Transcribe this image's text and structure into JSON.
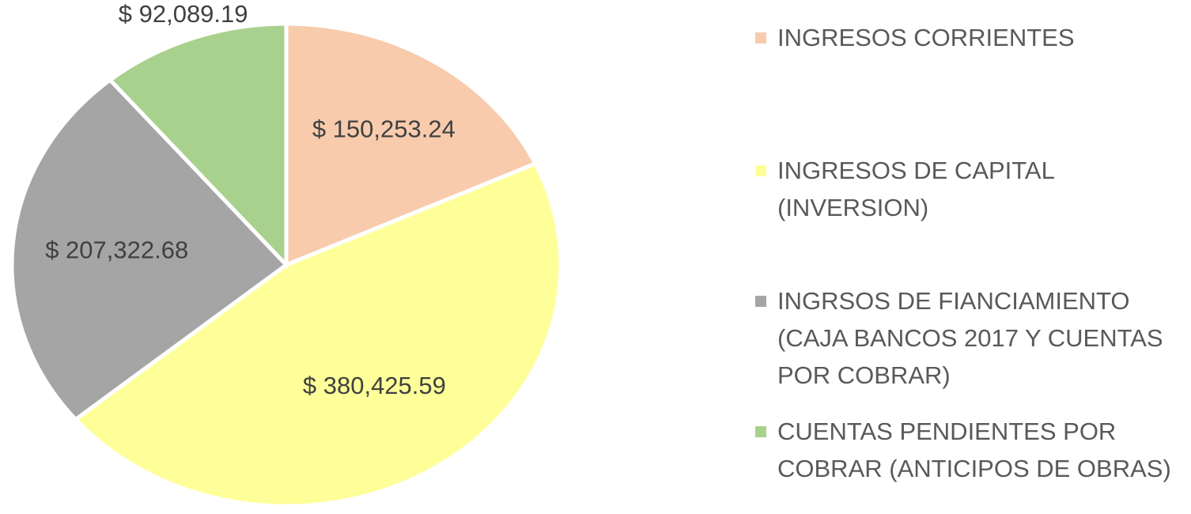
{
  "chart_data": {
    "type": "pie",
    "categories": [
      "INGRESOS CORRIENTES",
      "INGRESOS DE CAPITAL (INVERSION)",
      "INGRSOS DE FIANCIAMIENTO (CAJA BANCOS 2017 Y CUENTAS POR COBRAR)",
      "CUENTAS PENDIENTES POR COBRAR (ANTICIPOS DE OBRAS)"
    ],
    "values": [
      150253.24,
      380425.59,
      207322.68,
      92089.19
    ],
    "value_labels": [
      "$ 150,253.24",
      "$ 380,425.59",
      "$ 207,322.68",
      "$ 92,089.19"
    ],
    "colors": [
      "#f8cbad",
      "#ffff99",
      "#a5a5a5",
      "#a9d18e"
    ],
    "legend": "right"
  }
}
